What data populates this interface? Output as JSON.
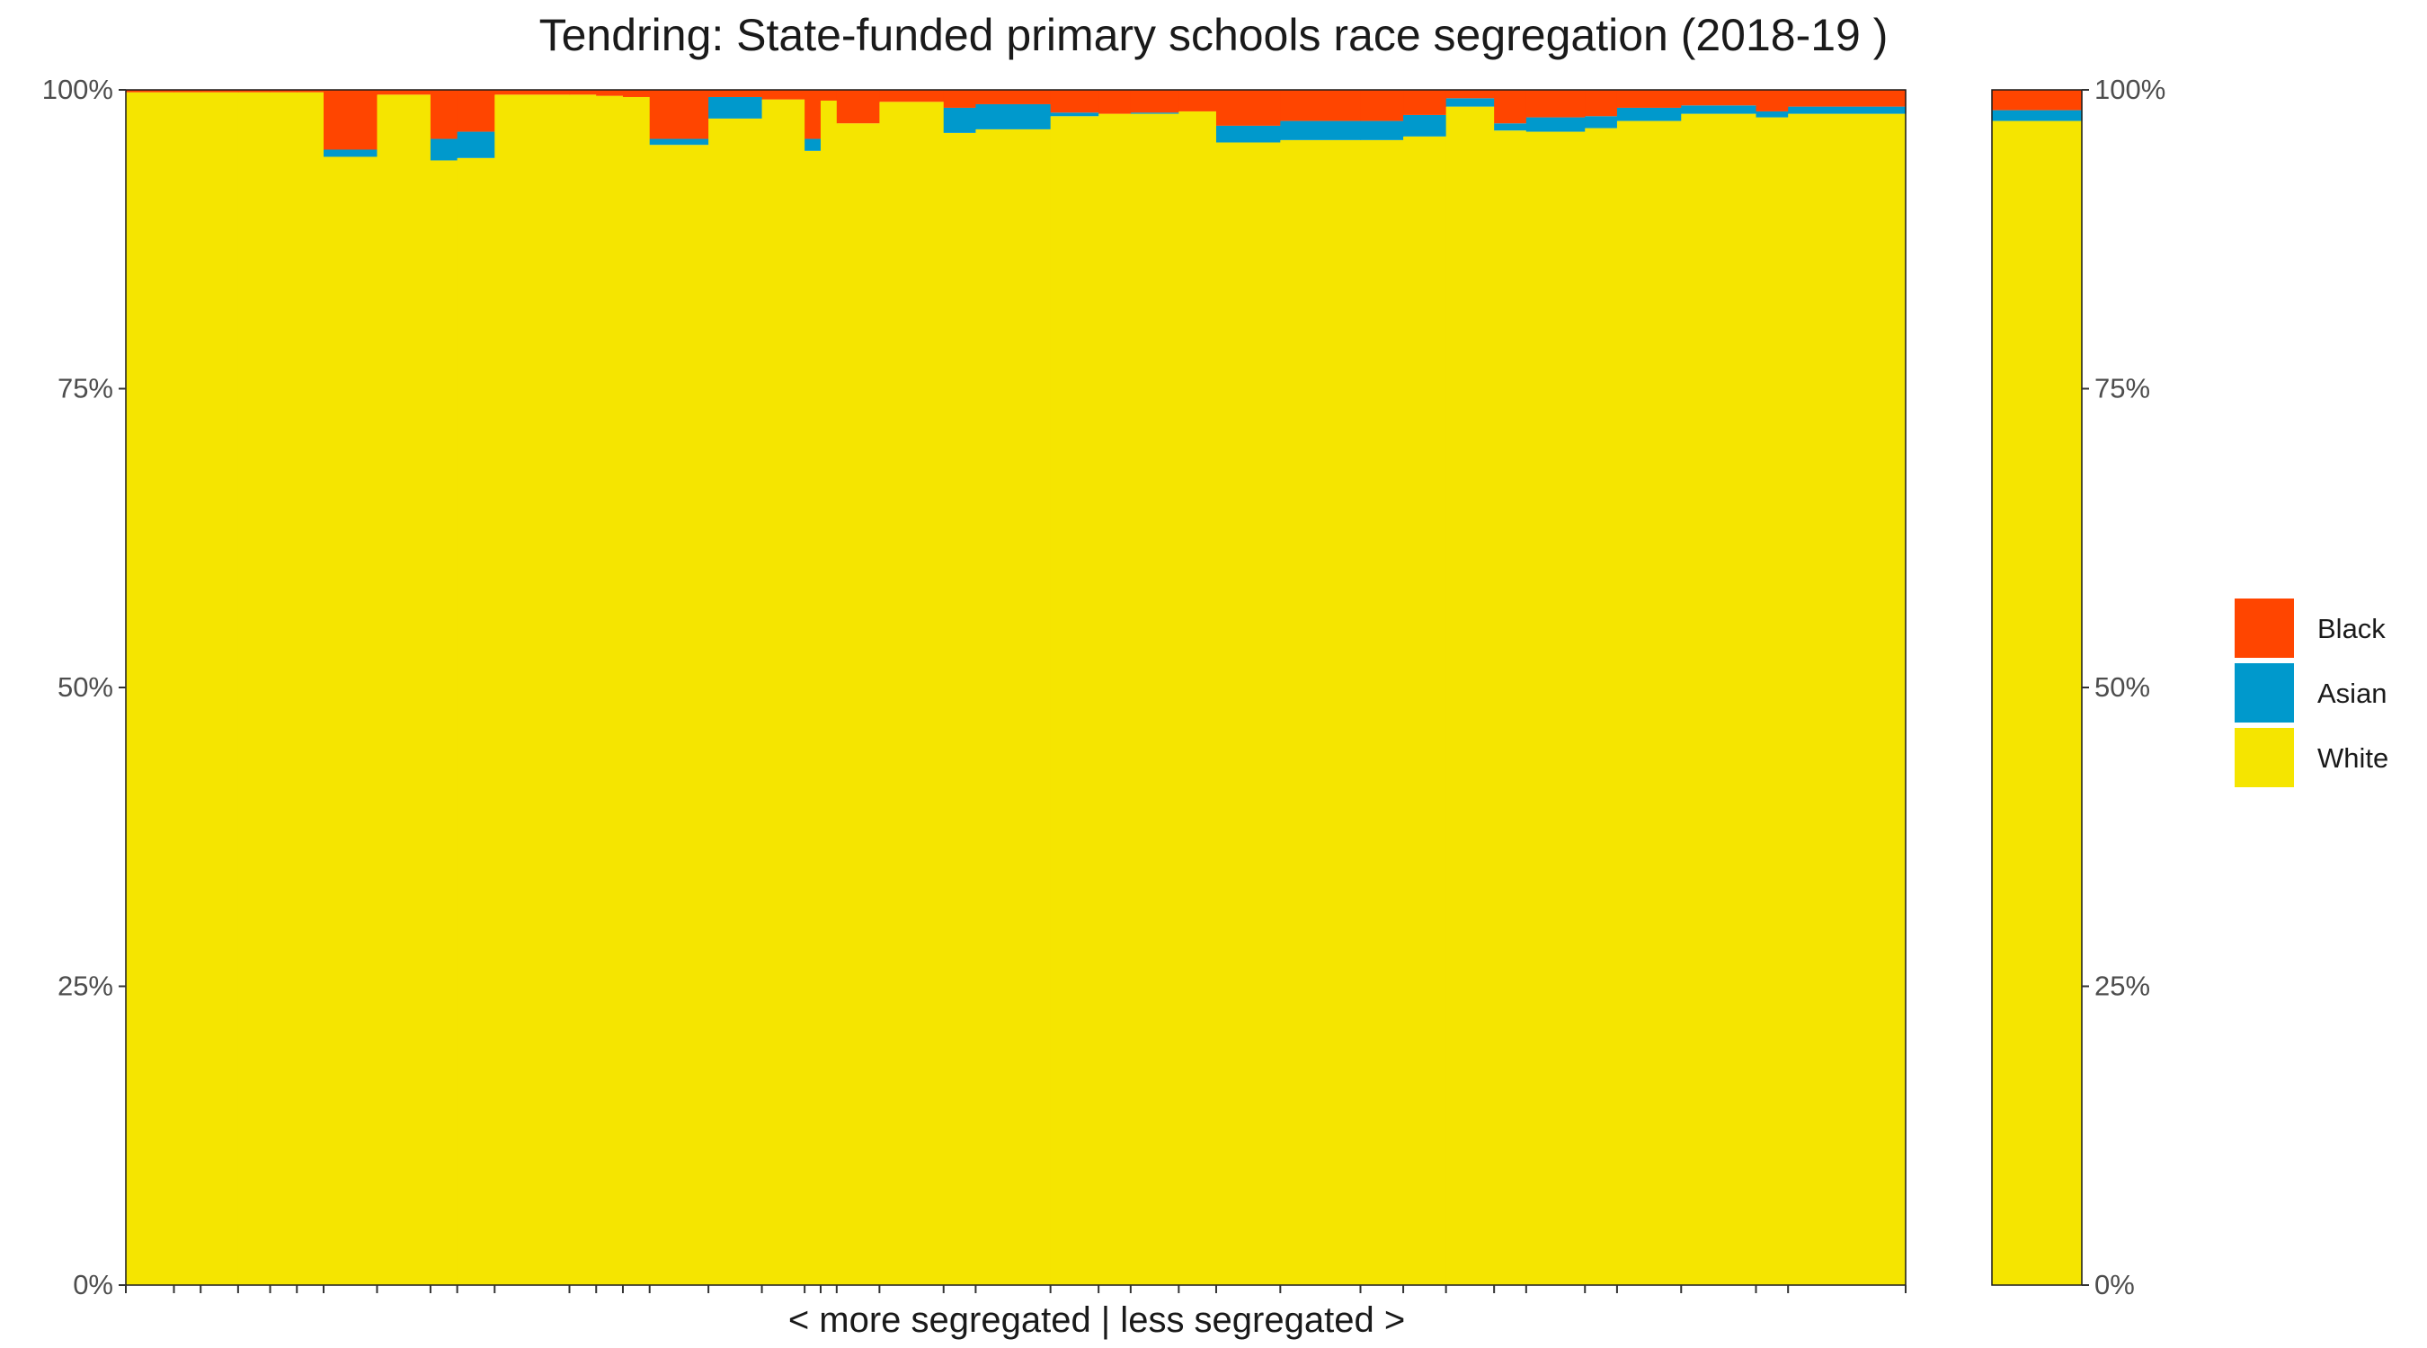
{
  "chart_data": {
    "type": "bar",
    "title": "Tendring: State-funded primary schools race segregation (2018-19 )",
    "xlabel": "< more segregated | less segregated >",
    "ylabel": "",
    "ylim": [
      0,
      100
    ],
    "yticks": [
      "0%",
      "25%",
      "50%",
      "75%",
      "100%"
    ],
    "stacking": "percent",
    "legend": {
      "position": "right",
      "entries": [
        "Black",
        "Asian",
        "White"
      ]
    },
    "colors": {
      "Black": "#FF4500",
      "Asian": "#0099CC",
      "White": "#F5E500"
    },
    "series_order": [
      "White",
      "Asian",
      "Black"
    ],
    "schools": [
      {
        "w": 0.9,
        "White": 99.8,
        "Asian": 0.0,
        "Black": 0.2
      },
      {
        "w": 0.5,
        "White": 99.8,
        "Asian": 0.0,
        "Black": 0.2
      },
      {
        "w": 0.7,
        "White": 99.8,
        "Asian": 0.0,
        "Black": 0.2
      },
      {
        "w": 0.6,
        "White": 99.8,
        "Asian": 0.0,
        "Black": 0.2
      },
      {
        "w": 0.5,
        "White": 99.8,
        "Asian": 0.0,
        "Black": 0.2
      },
      {
        "w": 0.5,
        "White": 99.8,
        "Asian": 0.0,
        "Black": 0.2
      },
      {
        "w": 1.0,
        "White": 94.4,
        "Asian": 0.6,
        "Black": 5.0
      },
      {
        "w": 1.0,
        "White": 99.6,
        "Asian": 0.0,
        "Black": 0.4
      },
      {
        "w": 0.5,
        "White": 94.1,
        "Asian": 1.8,
        "Black": 4.1
      },
      {
        "w": 0.7,
        "White": 94.3,
        "Asian": 2.2,
        "Black": 3.5
      },
      {
        "w": 1.4,
        "White": 99.6,
        "Asian": 0.0,
        "Black": 0.4
      },
      {
        "w": 0.5,
        "White": 99.6,
        "Asian": 0.0,
        "Black": 0.4
      },
      {
        "w": 0.5,
        "White": 99.5,
        "Asian": 0.0,
        "Black": 0.5
      },
      {
        "w": 0.5,
        "White": 99.4,
        "Asian": 0.0,
        "Black": 0.6
      },
      {
        "w": 1.1,
        "White": 95.4,
        "Asian": 0.5,
        "Black": 4.1
      },
      {
        "w": 1.0,
        "White": 97.6,
        "Asian": 1.8,
        "Black": 0.6
      },
      {
        "w": 0.8,
        "White": 99.2,
        "Asian": 0.0,
        "Black": 0.8
      },
      {
        "w": 0.3,
        "White": 94.9,
        "Asian": 1.0,
        "Black": 4.1
      },
      {
        "w": 0.3,
        "White": 99.1,
        "Asian": 0.0,
        "Black": 0.9
      },
      {
        "w": 0.8,
        "White": 97.2,
        "Asian": 0.0,
        "Black": 2.8
      },
      {
        "w": 1.2,
        "White": 99.0,
        "Asian": 0.0,
        "Black": 1.0
      },
      {
        "w": 0.6,
        "White": 96.4,
        "Asian": 2.1,
        "Black": 1.5
      },
      {
        "w": 1.4,
        "White": 96.7,
        "Asian": 2.1,
        "Black": 1.2
      },
      {
        "w": 0.9,
        "White": 97.8,
        "Asian": 0.3,
        "Black": 1.9
      },
      {
        "w": 0.6,
        "White": 98.0,
        "Asian": 0.0,
        "Black": 2.0
      },
      {
        "w": 0.9,
        "White": 98.0,
        "Asian": 0.1,
        "Black": 1.9
      },
      {
        "w": 0.7,
        "White": 98.2,
        "Asian": 0.0,
        "Black": 1.8
      },
      {
        "w": 1.2,
        "White": 95.6,
        "Asian": 1.4,
        "Black": 3.0
      },
      {
        "w": 1.5,
        "White": 95.8,
        "Asian": 1.6,
        "Black": 2.6
      },
      {
        "w": 0.8,
        "White": 95.8,
        "Asian": 1.6,
        "Black": 2.6
      },
      {
        "w": 0.8,
        "White": 96.1,
        "Asian": 1.8,
        "Black": 2.1
      },
      {
        "w": 0.9,
        "White": 98.6,
        "Asian": 0.7,
        "Black": 0.7
      },
      {
        "w": 0.6,
        "White": 96.6,
        "Asian": 0.6,
        "Black": 2.8
      },
      {
        "w": 1.1,
        "White": 96.5,
        "Asian": 1.2,
        "Black": 2.3
      },
      {
        "w": 0.6,
        "White": 96.8,
        "Asian": 1.0,
        "Black": 2.2
      },
      {
        "w": 1.2,
        "White": 97.4,
        "Asian": 1.1,
        "Black": 1.5
      },
      {
        "w": 1.4,
        "White": 98.0,
        "Asian": 0.7,
        "Black": 1.3
      },
      {
        "w": 0.6,
        "White": 97.7,
        "Asian": 0.5,
        "Black": 1.8
      },
      {
        "w": 2.2,
        "White": 98.0,
        "Asian": 0.6,
        "Black": 1.4
      }
    ],
    "overall": {
      "White": 97.4,
      "Asian": 0.9,
      "Black": 1.7
    }
  }
}
